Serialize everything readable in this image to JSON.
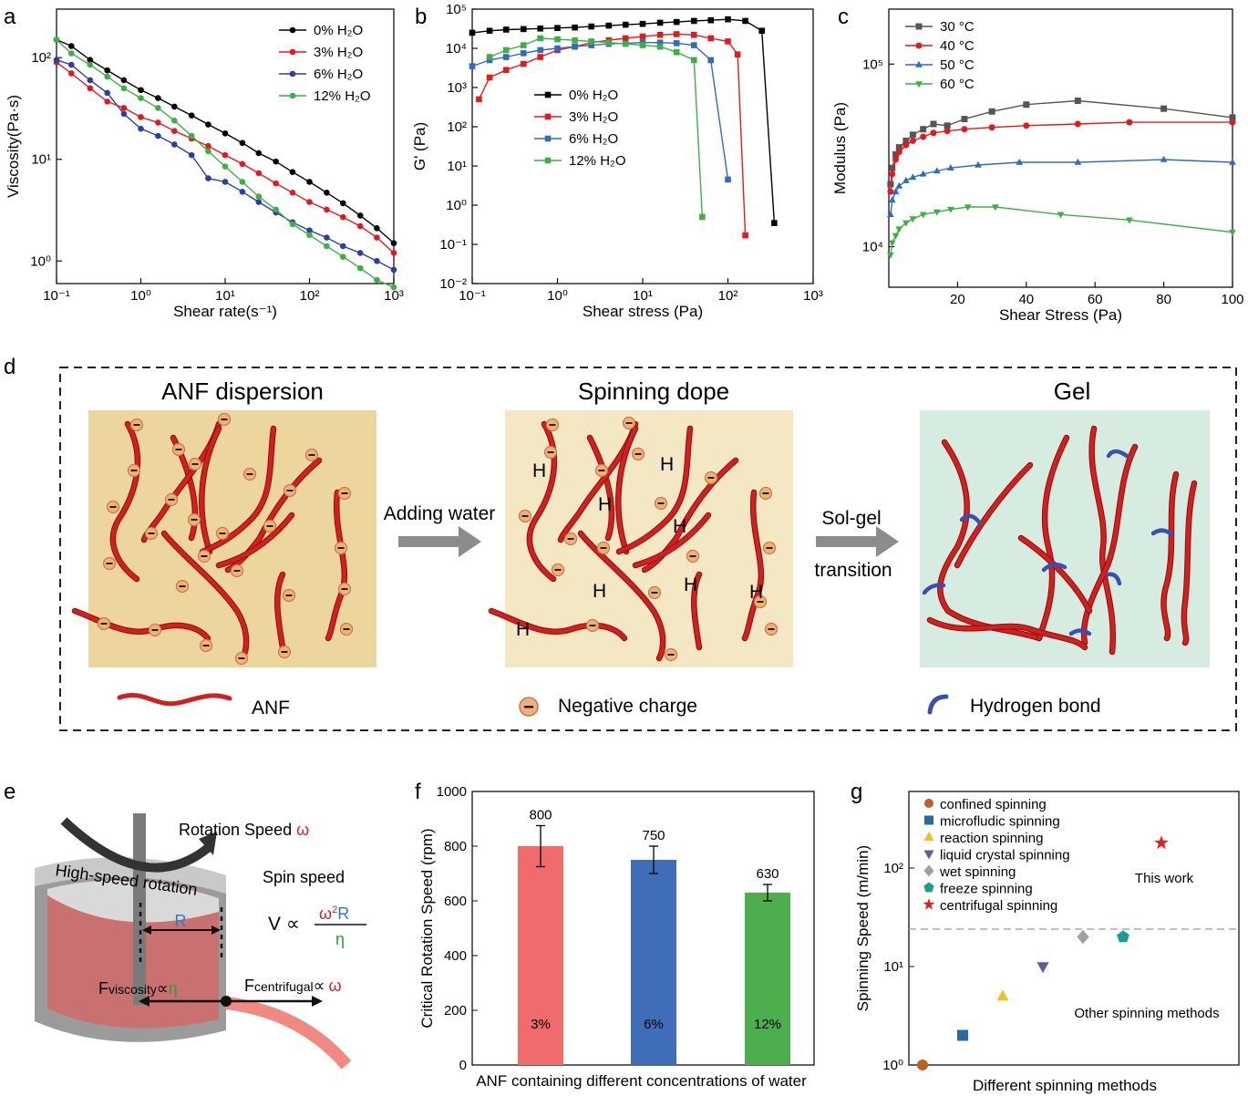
{
  "panel_labels": {
    "a": "a",
    "b": "b",
    "c": "c",
    "d": "d",
    "e": "e",
    "f": "f",
    "g": "g"
  },
  "chart_data": [
    {
      "id": "a",
      "type": "line",
      "xscale": "log",
      "yscale": "log",
      "xlabel": "Shear rate(s⁻¹)",
      "ylabel": "Viscosity(Pa·s)",
      "xlim": [
        0.1,
        1000
      ],
      "ylim": [
        0.6,
        300
      ],
      "xticks": [
        "10⁻¹",
        "10⁰",
        "10¹",
        "10²",
        "10³"
      ],
      "yticks": [
        "10⁰",
        "10¹",
        "10²"
      ],
      "legend": "top-right",
      "series": [
        {
          "name": "0% H₂O",
          "color": "#000000",
          "x": [
            0.1,
            0.15,
            0.25,
            0.4,
            0.63,
            1,
            1.6,
            2.5,
            4,
            6.3,
            10,
            16,
            25,
            40,
            63,
            100,
            160,
            250,
            400,
            630,
            1000
          ],
          "y": [
            150,
            130,
            95,
            75,
            60,
            48,
            40,
            33,
            27,
            22,
            18,
            14.5,
            11.5,
            9.5,
            7.5,
            6,
            4.7,
            3.7,
            2.8,
            2.1,
            1.5
          ]
        },
        {
          "name": "3% H₂O",
          "color": "#e31a1c",
          "x": [
            0.1,
            0.15,
            0.25,
            0.4,
            0.63,
            1,
            1.6,
            2.5,
            4,
            6.3,
            10,
            16,
            25,
            40,
            63,
            100,
            160,
            250,
            400,
            630,
            1000
          ],
          "y": [
            90,
            70,
            50,
            37,
            32,
            26,
            23,
            19,
            16,
            13.5,
            11,
            9,
            7.3,
            5.8,
            4.7,
            3.8,
            3.2,
            2.7,
            2.2,
            1.7,
            1.2
          ]
        },
        {
          "name": "6% H₂O",
          "color": "#2b3fa3",
          "x": [
            0.1,
            0.15,
            0.25,
            0.4,
            0.63,
            1,
            1.6,
            2.5,
            4,
            6.3,
            10,
            16,
            25,
            40,
            63,
            100,
            160,
            250,
            400,
            630,
            1000
          ],
          "y": [
            95,
            85,
            60,
            45,
            28,
            20,
            17,
            14,
            11,
            6.5,
            6,
            4.8,
            3.8,
            3,
            2.4,
            2,
            1.7,
            1.4,
            1.2,
            1.0,
            0.82
          ]
        },
        {
          "name": "12% H₂O",
          "color": "#3cb043",
          "x": [
            0.1,
            0.15,
            0.25,
            0.4,
            0.63,
            1,
            1.6,
            2.5,
            4,
            6.3,
            10,
            16,
            25,
            40,
            63,
            100,
            160,
            250,
            400,
            630,
            1000
          ],
          "y": [
            150,
            110,
            85,
            65,
            50,
            40,
            32,
            24,
            17,
            12,
            8.5,
            6,
            4.3,
            3.2,
            2.3,
            1.8,
            1.4,
            1.1,
            0.85,
            0.65,
            0.55
          ]
        }
      ]
    },
    {
      "id": "b",
      "type": "line",
      "xscale": "log",
      "yscale": "log",
      "xlabel": "Shear stress (Pa)",
      "ylabel": "G' (Pa)",
      "xlim": [
        0.1,
        1000
      ],
      "ylim": [
        0.01,
        100000
      ],
      "xticks": [
        "10⁻¹",
        "10⁰",
        "10¹",
        "10²",
        "10³"
      ],
      "yticks": [
        "10⁻²",
        "10⁻¹",
        "10⁰",
        "10¹",
        "10²",
        "10³",
        "10⁴",
        "10⁵"
      ],
      "legend": "center-left",
      "series": [
        {
          "name": "0% H₂O",
          "color": "#000000",
          "x": [
            0.1,
            0.16,
            0.25,
            0.4,
            0.63,
            1,
            1.6,
            2.5,
            4,
            6.3,
            10,
            16,
            25,
            40,
            63,
            100,
            160,
            250,
            350
          ],
          "y": [
            25000,
            28000,
            30000,
            31000,
            32000,
            33000,
            34000,
            36000,
            38000,
            40000,
            42000,
            45000,
            47000,
            50000,
            52000,
            55000,
            50000,
            28000,
            0.35
          ]
        },
        {
          "name": "3% H₂O",
          "color": "#e31a1c",
          "x": [
            0.12,
            0.16,
            0.25,
            0.4,
            0.63,
            1,
            1.6,
            2.5,
            4,
            6.3,
            10,
            16,
            25,
            40,
            63,
            100,
            130,
            160
          ],
          "y": [
            500,
            1800,
            2800,
            4000,
            6000,
            9000,
            11000,
            14000,
            16000,
            18000,
            20000,
            22000,
            23000,
            22000,
            18000,
            15000,
            7000,
            0.17
          ]
        },
        {
          "name": "6% H₂O",
          "color": "#2f6bbf",
          "x": [
            0.1,
            0.16,
            0.25,
            0.4,
            0.63,
            1,
            1.6,
            2.5,
            4,
            6.3,
            10,
            16,
            25,
            40,
            63,
            100
          ],
          "y": [
            3500,
            5000,
            6000,
            7500,
            9000,
            10000,
            11000,
            12000,
            13000,
            13500,
            14000,
            14000,
            13500,
            12000,
            5000,
            4.5
          ]
        },
        {
          "name": "12% H₂O",
          "color": "#3cb043",
          "x": [
            0.16,
            0.25,
            0.4,
            0.63,
            1,
            1.6,
            2.5,
            4,
            6.3,
            10,
            16,
            25,
            40,
            50
          ],
          "y": [
            6000,
            9000,
            12000,
            18000,
            17000,
            16000,
            15000,
            14000,
            13000,
            12000,
            11000,
            8000,
            5000,
            0.5
          ]
        }
      ]
    },
    {
      "id": "c",
      "type": "line",
      "xscale": "linear",
      "yscale": "log",
      "xlabel": "Shear Stress (Pa)",
      "ylabel": "Modulus (Pa)",
      "xlim": [
        0,
        100
      ],
      "ylim": [
        6000,
        200000
      ],
      "xticks": [
        "20",
        "40",
        "60",
        "80",
        "100"
      ],
      "yticks": [
        "10⁴",
        "10⁵"
      ],
      "legend": "top-left",
      "series": [
        {
          "name": "30 °C",
          "color": "#555555",
          "x": [
            0.5,
            1,
            2,
            3,
            5,
            7,
            10,
            13,
            17,
            22,
            30,
            40,
            55,
            80,
            100
          ],
          "y": [
            22000,
            27000,
            32000,
            35000,
            38000,
            41000,
            44000,
            47000,
            46000,
            50000,
            55000,
            60000,
            63000,
            57000,
            51000
          ]
        },
        {
          "name": "40 °C",
          "color": "#e31a1c",
          "x": [
            0.5,
            1,
            2,
            3,
            5,
            7,
            10,
            13,
            17,
            22,
            30,
            40,
            55,
            70,
            100
          ],
          "y": [
            20000,
            25000,
            30000,
            33000,
            36000,
            38000,
            40000,
            42000,
            43000,
            44000,
            45000,
            46000,
            47000,
            48000,
            48000
          ]
        },
        {
          "name": "50 °C",
          "color": "#2f6bbf",
          "x": [
            0.5,
            1,
            2,
            3,
            5,
            7,
            10,
            14,
            18,
            26,
            38,
            55,
            80,
            100
          ],
          "y": [
            15000,
            18000,
            20000,
            21500,
            23000,
            24000,
            25000,
            26000,
            27000,
            28000,
            29000,
            29000,
            30000,
            29000
          ]
        },
        {
          "name": "60 °C",
          "color": "#3cb043",
          "x": [
            0.5,
            1,
            2,
            3,
            5,
            7,
            10,
            14,
            18,
            23,
            31,
            50,
            70,
            100
          ],
          "y": [
            9000,
            10500,
            11500,
            12500,
            13500,
            14200,
            15000,
            15500,
            16000,
            16500,
            16500,
            15000,
            14000,
            12000
          ]
        }
      ]
    },
    {
      "id": "f",
      "type": "bar",
      "xlabel": "ANF containing different concentrations of water",
      "ylabel": "Critical Rotation Speed (rpm)",
      "ylim": [
        0,
        1000
      ],
      "yticks": [
        "0",
        "200",
        "400",
        "600",
        "800",
        "1000"
      ],
      "categories": [
        "3%",
        "6%",
        "12%"
      ],
      "values": [
        800,
        750,
        630
      ],
      "value_labels": [
        "800",
        "750",
        "630"
      ],
      "errors": [
        75,
        50,
        30
      ],
      "colors": [
        "#f06b6b",
        "#3f6db8",
        "#4cae4c"
      ]
    },
    {
      "id": "g",
      "type": "scatter",
      "xlabel": "Different spinning methods",
      "ylabel": "Spinning Speed (m/min)",
      "yscale": "log",
      "ylim": [
        1,
        600
      ],
      "yticks": [
        "10⁰",
        "10¹",
        "10²"
      ],
      "threshold": 24,
      "annotation_top": "This work",
      "annotation_bottom": "Other spinning methods",
      "legend": "top-left",
      "series": [
        {
          "name": "confined spinning",
          "marker": "circle",
          "color": "#c0601e",
          "xpos": 1,
          "y": 1
        },
        {
          "name": "microfludic spinning",
          "marker": "square",
          "color": "#2a6a9e",
          "xpos": 2,
          "y": 2
        },
        {
          "name": "reaction spinning",
          "marker": "triangle-up",
          "color": "#f0c020",
          "xpos": 3,
          "y": 5
        },
        {
          "name": "liquid crystal spinning",
          "marker": "triangle-down",
          "color": "#5c5f9a",
          "xpos": 4,
          "y": 10
        },
        {
          "name": "wet spinning",
          "marker": "diamond",
          "color": "#a0a0a0",
          "xpos": 5,
          "y": 20
        },
        {
          "name": "freeze spinning",
          "marker": "pentagon",
          "color": "#1a9e8f",
          "xpos": 6,
          "y": 20
        },
        {
          "name": "centrifugal spinning",
          "marker": "star",
          "color": "#e02020",
          "xpos": 7,
          "y": 180
        }
      ]
    }
  ],
  "schematic_d": {
    "stage1_title": "ANF dispersion",
    "stage2_title": "Spinning dope",
    "stage3_title": "Gel",
    "arrow1_label": "Adding water",
    "arrow2_label_line1": "Sol-gel",
    "arrow2_label_line2": "transition",
    "h_symbol": "H",
    "legend_anf": "ANF",
    "legend_negative": "Negative charge",
    "legend_hbond": "Hydrogen bond",
    "colors": {
      "stage1_bg": "#ecd69e",
      "stage2_bg": "#f4e8c4",
      "stage3_bg": "#d6ece0",
      "fiber": "#d41f1f",
      "hbond": "#3a50b0"
    }
  },
  "schematic_e": {
    "rotation_speed": "Rotation Speed ",
    "omega": "ω",
    "high_speed": "High-speed rotation",
    "spin_speed": "Spin speed",
    "radius": "R",
    "v_prop": "V ∝",
    "numerator_omega": "ω",
    "numerator_sup": "2",
    "numerator_r": "R",
    "denominator": "η",
    "f_viscosity": "F",
    "f_viscosity_sub": "viscosity",
    "prop": "∝",
    "eta": "η",
    "f_centrifugal": "F",
    "f_centrifugal_sub": "centrifugal"
  }
}
